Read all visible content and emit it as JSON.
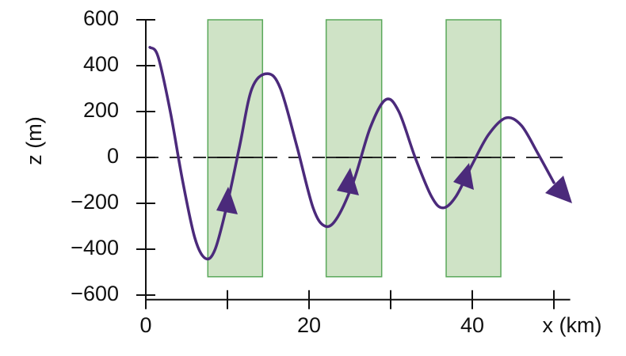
{
  "chart_data": {
    "type": "line",
    "xlabel": "x (km)",
    "ylabel": "z (m)",
    "xlim": [
      0,
      52
    ],
    "ylim": [
      -620,
      600
    ],
    "xticks": [
      0,
      20,
      40
    ],
    "minor_xticks": [
      10,
      30,
      50
    ],
    "yticks": [
      600,
      400,
      200,
      0,
      {
        "value": -200,
        "label": "−200"
      },
      {
        "value": -400,
        "label": "−400"
      },
      {
        "value": -600,
        "label": "−600"
      }
    ],
    "x": [
      0.5,
      1.5,
      3,
      4.5,
      6,
      7.3,
      8.5,
      10,
      11.5,
      13,
      14.9,
      16.5,
      18.5,
      20.5,
      22,
      23.5,
      25.5,
      27.5,
      29.4,
      31,
      33,
      35,
      36.4,
      38,
      40,
      42,
      44.1,
      46,
      48,
      50
    ],
    "values": [
      480,
      440,
      200,
      -100,
      -350,
      -440,
      -400,
      -200,
      50,
      300,
      365,
      300,
      50,
      -220,
      -300,
      -260,
      -100,
      130,
      252,
      200,
      0,
      -170,
      -220,
      -170,
      -30,
      100,
      172,
      140,
      20,
      -110
    ],
    "color": "#4b2a7b",
    "shaded_regions": [
      {
        "xstart": 7.6,
        "xend": 14.3,
        "zbottom": -520,
        "ztop": 600
      },
      {
        "xstart": 22.1,
        "xend": 28.9,
        "zbottom": -520,
        "ztop": 600
      },
      {
        "xstart": 36.8,
        "xend": 43.5,
        "zbottom": -520,
        "ztop": 600
      }
    ],
    "shade_color": "#cfe3c6",
    "shade_edge_color": "#5aa85a"
  }
}
